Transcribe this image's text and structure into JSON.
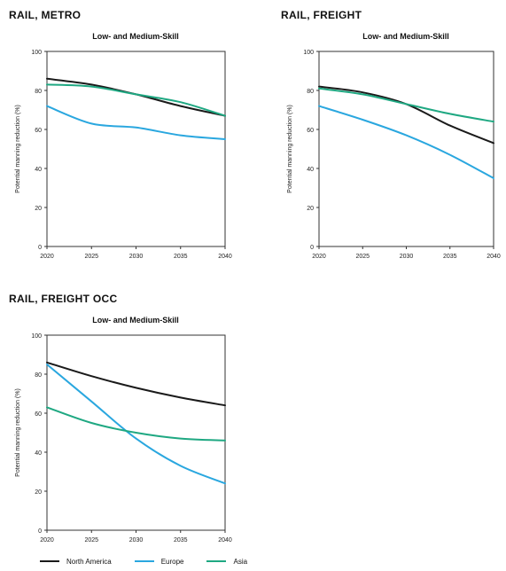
{
  "chart_data": [
    {
      "type": "line",
      "title": "RAIL, METRO",
      "subtitle": "Low- and Medium-Skill",
      "ylabel": "Potential manning reduction (%)",
      "xlabel": "",
      "x": [
        2020,
        2025,
        2030,
        2035,
        2040
      ],
      "ylim": [
        0,
        100
      ],
      "yticks": [
        0,
        20,
        40,
        60,
        80,
        100
      ],
      "series": [
        {
          "name": "North America",
          "values": [
            86,
            83,
            78,
            72,
            67
          ]
        },
        {
          "name": "Europe",
          "values": [
            72,
            63,
            61,
            57,
            55
          ]
        },
        {
          "name": "Asia",
          "values": [
            83,
            82,
            78,
            74,
            67
          ]
        }
      ]
    },
    {
      "type": "line",
      "title": "RAIL, FREIGHT",
      "subtitle": "Low- and Medium-Skill",
      "ylabel": "Potential manning reduction (%)",
      "xlabel": "",
      "x": [
        2020,
        2025,
        2030,
        2035,
        2040
      ],
      "ylim": [
        0,
        100
      ],
      "yticks": [
        0,
        20,
        40,
        60,
        80,
        100
      ],
      "series": [
        {
          "name": "North America",
          "values": [
            82,
            79,
            73,
            62,
            53
          ]
        },
        {
          "name": "Europe",
          "values": [
            72,
            65,
            57,
            47,
            35
          ]
        },
        {
          "name": "Asia",
          "values": [
            81,
            78,
            73,
            68,
            64
          ]
        }
      ]
    },
    {
      "type": "line",
      "title": "RAIL, FREIGHT OCC",
      "subtitle": "Low- and Medium-Skill",
      "ylabel": "Potential manning reduction (%)",
      "xlabel": "",
      "x": [
        2020,
        2025,
        2030,
        2035,
        2040
      ],
      "ylim": [
        0,
        100
      ],
      "yticks": [
        0,
        20,
        40,
        60,
        80,
        100
      ],
      "series": [
        {
          "name": "North America",
          "values": [
            86,
            79,
            73,
            68,
            64
          ]
        },
        {
          "name": "Europe",
          "values": [
            85,
            66,
            47,
            33,
            24
          ]
        },
        {
          "name": "Asia",
          "values": [
            63,
            55,
            50,
            47,
            46
          ]
        }
      ]
    }
  ],
  "legend": [
    {
      "label": "North America",
      "color": "#1a1a1a"
    },
    {
      "label": "Europe",
      "color": "#2aa7df"
    },
    {
      "label": "Asia",
      "color": "#1fa882"
    }
  ]
}
